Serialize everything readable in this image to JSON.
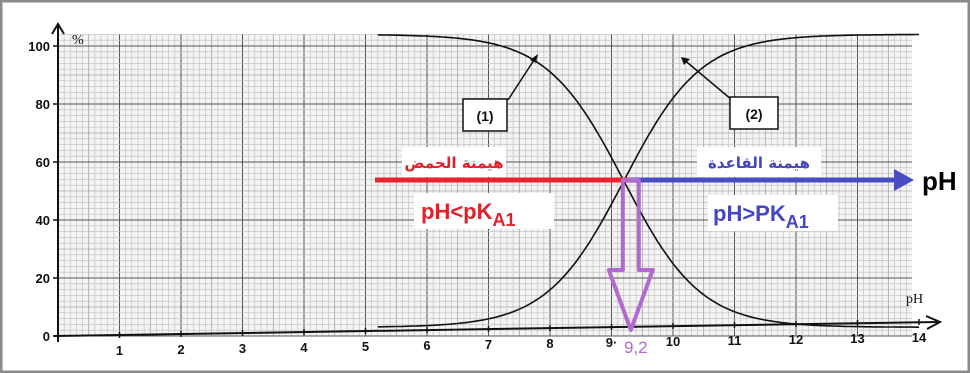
{
  "chart_data": {
    "type": "line",
    "y_unit": "%",
    "x_unit": "pH",
    "xlim": [
      0,
      14
    ],
    "ylim": [
      0,
      105
    ],
    "x_ticks": [
      "1",
      "2",
      "3",
      "4",
      "5",
      "6",
      "7",
      "8",
      "9",
      "10",
      "11",
      "12",
      "13",
      "14"
    ],
    "y_ticks": [
      "0",
      "20",
      "40",
      "60",
      "80",
      "100"
    ],
    "grid": true,
    "series": [
      {
        "name": "(1)",
        "pKa": 9.2,
        "slope": 1.6,
        "direction": "decreasing",
        "color": "#111111"
      },
      {
        "name": "(2)",
        "pKa": 9.2,
        "slope": 1.6,
        "direction": "increasing",
        "color": "#111111"
      }
    ],
    "annotations": {
      "tag1": "(1)",
      "tag2": "(2)",
      "acid_region_title": "هيمنة الحمض",
      "acid_region_cond_main": "pH<pK",
      "acid_region_cond_sub": "A1",
      "base_region_title": "هيمنة القاعدة",
      "base_region_cond_main": "pH>PK",
      "base_region_cond_sub": "A1",
      "ph_axis_label": "pH",
      "pka_label": "9,2",
      "pka_x": 9.2,
      "pka_y": 50,
      "tick9_label": "9·"
    },
    "colors": {
      "acid": "#e8232b",
      "base": "#4a4bc4",
      "pka_arrow": "#b06ad0",
      "acid_text": "#e0202a",
      "base_text": "#4545c0"
    }
  }
}
